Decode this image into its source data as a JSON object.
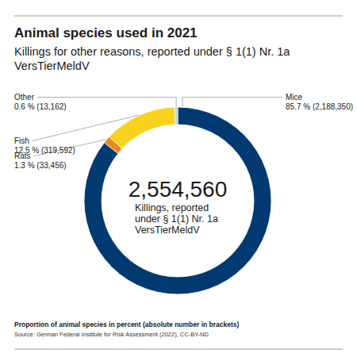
{
  "chart_data": {
    "type": "donut",
    "title": "Animal species used in 2021",
    "subtitle": [
      "Killings for other reasons, reported under § 1(1) Nr. 1a",
      "VersTierMeldV"
    ],
    "categories": [
      "Mice",
      "Rats",
      "Fish",
      "Other"
    ],
    "values": [
      2188350,
      33456,
      319592,
      13162
    ],
    "value_labels": [
      "85.7 % (2,188,350)",
      "1.3 % (33,456)",
      "12.5 % (319,592)",
      "0.6 % (13,162)"
    ],
    "colors": [
      "#003a70",
      "#e8891e",
      "#f8d21c",
      "#c3ccd6"
    ],
    "data_labels": true,
    "center_value": {
      "value": 2554560,
      "label": "2,554,560"
    },
    "center_text": [
      "Killings, reported",
      "under § 1(1) Nr. 1a",
      "VersTierMeldV"
    ],
    "note": "Proportion of animal species in percent (absolute number in brackets)",
    "source": "Source: German Federal Institute for Risk Assessment (2022), CC-BY-ND"
  }
}
